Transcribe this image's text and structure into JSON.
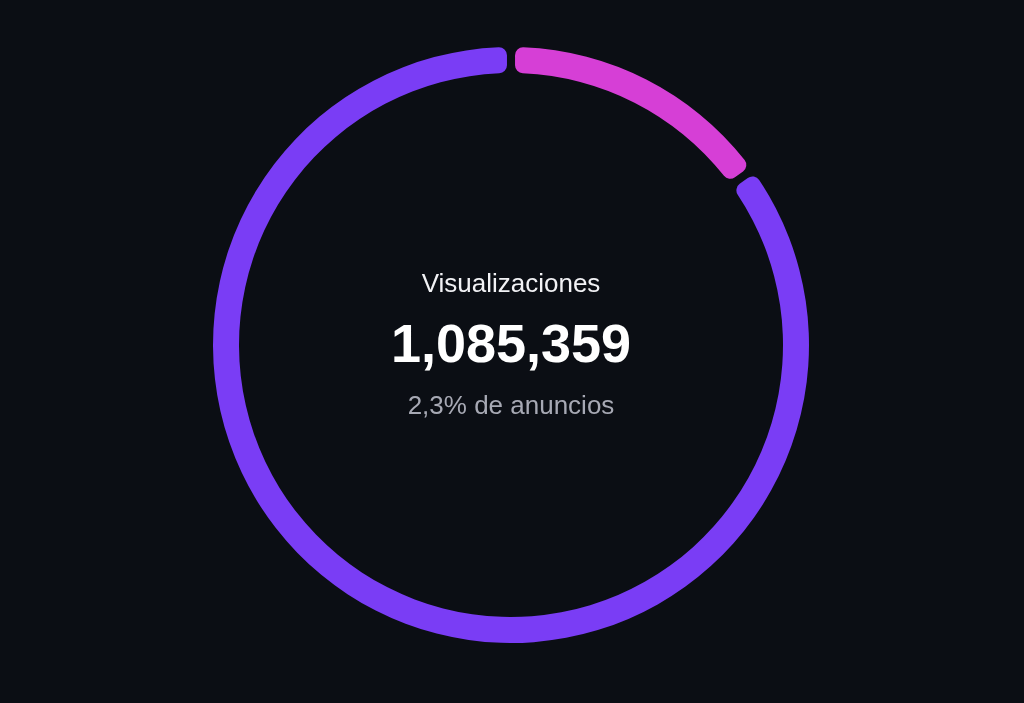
{
  "chart_data": {
    "type": "donut",
    "categories": [
      null,
      null
    ],
    "values": [
      15,
      85
    ],
    "colors": [
      "#d63fd6",
      "#7a3df5"
    ],
    "annotations": [
      "Visualizaciones",
      "1,085,359",
      "2,3% de anuncios"
    ]
  }
}
